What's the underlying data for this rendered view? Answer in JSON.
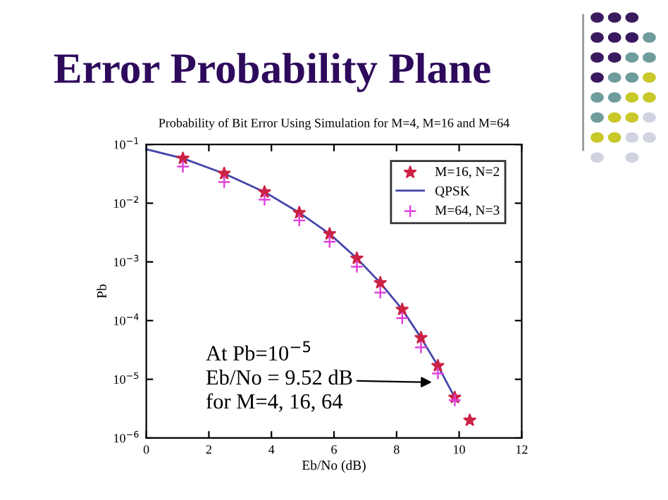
{
  "chart_data": {
    "type": "line",
    "title": "Error Probability Plane",
    "subtitle": "Probability of Bit Error Using Simulation for M=4, M=16 and M=64",
    "xlabel": "Eb/No (dB)",
    "ylabel": "Pb",
    "series": [
      {
        "name": "M=16, N=2",
        "type": "scatter",
        "marker": "star",
        "color": "#cc2244",
        "x": [
          1.17,
          2.49,
          3.78,
          4.89,
          5.86,
          6.73,
          7.48,
          8.18,
          8.78,
          9.32,
          9.86,
          10.34
        ],
        "values": [
          0.058,
          0.032,
          0.0155,
          0.0069,
          0.003,
          0.00115,
          0.00044,
          0.000155,
          5.1e-05,
          1.7e-05,
          4.9e-06,
          2e-06
        ]
      },
      {
        "name": "QPSK",
        "marker": "none",
        "line_style": "solid",
        "color": "#4444aa",
        "x": [
          0,
          1.17,
          2.49,
          3.78,
          4.89,
          5.86,
          6.73,
          7.48,
          8.18,
          8.78,
          9.32,
          9.86,
          9.97
        ],
        "values": [
          0.083,
          0.058,
          0.032,
          0.0155,
          0.0069,
          0.003,
          0.00115,
          0.00044,
          0.000155,
          5.1e-05,
          1.7e-05,
          4.9e-06,
          4.2e-06
        ]
      },
      {
        "name": "M=64, N=3",
        "type": "scatter",
        "marker": "cross",
        "color": "#dd44dd",
        "x": [
          1.17,
          2.49,
          3.78,
          4.89,
          5.86,
          6.73,
          7.48,
          8.18,
          8.78,
          9.32,
          9.86
        ],
        "values": [
          0.042,
          0.023,
          0.0115,
          0.0051,
          0.0022,
          0.00083,
          0.0003,
          0.00011,
          3.5e-05,
          1.26e-05,
          4.4e-06
        ]
      }
    ],
    "log": "y",
    "xlim": [
      0,
      12
    ],
    "xticks": [
      0,
      2,
      4,
      6,
      8,
      10,
      12
    ],
    "ylim": [
      1e-06,
      0.1
    ],
    "yticks": [
      {
        "value": 1e-06,
        "label": "10$^{−6}$"
      },
      {
        "value": 1e-05,
        "label": "10$^{−5}$"
      },
      {
        "value": 0.0001,
        "label": "10$^{−4}$"
      },
      {
        "value": 0.001,
        "label": "10$^{−3}$"
      },
      {
        "value": 0.01,
        "label": "10$^{−2}$"
      },
      {
        "value": 0.1,
        "label": "10$^{−1}$"
      }
    ],
    "legend": "top right",
    "annotations": [
      {
        "text": "At Pb=10$^{−5}$\nEb/No = 9.52 dB\nfor M=4, 16, 64",
        "x": 9.13,
        "y": 8.9e-06
      }
    ]
  }
}
